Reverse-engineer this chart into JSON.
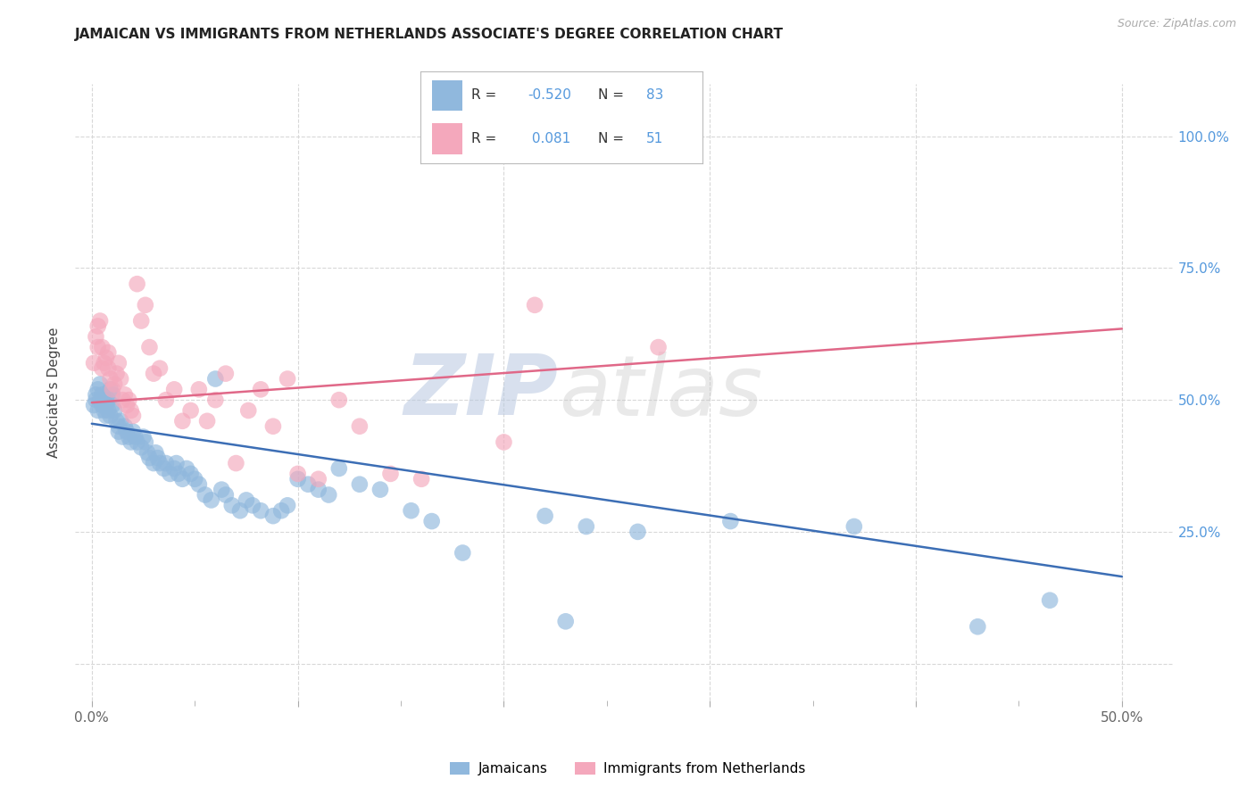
{
  "title": "JAMAICAN VS IMMIGRANTS FROM NETHERLANDS ASSOCIATE'S DEGREE CORRELATION CHART",
  "source": "Source: ZipAtlas.com",
  "ylabel_label": "Associate's Degree",
  "xlim": [
    -0.008,
    0.525
  ],
  "ylim": [
    -0.07,
    1.1
  ],
  "blue_color": "#90b8dd",
  "pink_color": "#f4a8bc",
  "blue_line_color": "#3c6eb5",
  "pink_line_color": "#e06888",
  "watermark_zip": "ZIP",
  "watermark_atlas": "atlas",
  "background_color": "#ffffff",
  "grid_color": "#d8d8d8",
  "blue_trend_x0": 0.0,
  "blue_trend_y0": 0.455,
  "blue_trend_x1": 0.5,
  "blue_trend_y1": 0.165,
  "pink_trend_x0": 0.0,
  "pink_trend_y0": 0.495,
  "pink_trend_x1": 0.5,
  "pink_trend_y1": 0.635,
  "jamaicans_x": [
    0.001,
    0.002,
    0.002,
    0.003,
    0.003,
    0.004,
    0.004,
    0.005,
    0.005,
    0.006,
    0.006,
    0.007,
    0.007,
    0.008,
    0.008,
    0.009,
    0.009,
    0.01,
    0.01,
    0.011,
    0.012,
    0.013,
    0.013,
    0.014,
    0.015,
    0.016,
    0.017,
    0.018,
    0.019,
    0.02,
    0.021,
    0.022,
    0.024,
    0.025,
    0.026,
    0.027,
    0.028,
    0.03,
    0.031,
    0.032,
    0.033,
    0.035,
    0.036,
    0.038,
    0.04,
    0.041,
    0.042,
    0.044,
    0.046,
    0.048,
    0.05,
    0.052,
    0.055,
    0.058,
    0.06,
    0.063,
    0.065,
    0.068,
    0.072,
    0.075,
    0.078,
    0.082,
    0.088,
    0.092,
    0.095,
    0.1,
    0.105,
    0.11,
    0.115,
    0.12,
    0.13,
    0.14,
    0.155,
    0.165,
    0.18,
    0.22,
    0.24,
    0.265,
    0.31,
    0.37,
    0.43,
    0.465,
    0.23
  ],
  "jamaicans_y": [
    0.49,
    0.5,
    0.51,
    0.52,
    0.48,
    0.5,
    0.53,
    0.51,
    0.49,
    0.5,
    0.48,
    0.49,
    0.47,
    0.5,
    0.48,
    0.52,
    0.47,
    0.51,
    0.49,
    0.48,
    0.46,
    0.45,
    0.44,
    0.46,
    0.43,
    0.45,
    0.44,
    0.43,
    0.42,
    0.44,
    0.43,
    0.42,
    0.41,
    0.43,
    0.42,
    0.4,
    0.39,
    0.38,
    0.4,
    0.39,
    0.38,
    0.37,
    0.38,
    0.36,
    0.37,
    0.38,
    0.36,
    0.35,
    0.37,
    0.36,
    0.35,
    0.34,
    0.32,
    0.31,
    0.54,
    0.33,
    0.32,
    0.3,
    0.29,
    0.31,
    0.3,
    0.29,
    0.28,
    0.29,
    0.3,
    0.35,
    0.34,
    0.33,
    0.32,
    0.37,
    0.34,
    0.33,
    0.29,
    0.27,
    0.21,
    0.28,
    0.26,
    0.25,
    0.27,
    0.26,
    0.07,
    0.12,
    0.08
  ],
  "netherlands_x": [
    0.001,
    0.002,
    0.003,
    0.003,
    0.004,
    0.005,
    0.005,
    0.006,
    0.007,
    0.008,
    0.008,
    0.009,
    0.01,
    0.011,
    0.012,
    0.013,
    0.014,
    0.015,
    0.016,
    0.017,
    0.018,
    0.019,
    0.02,
    0.022,
    0.024,
    0.026,
    0.028,
    0.03,
    0.033,
    0.036,
    0.04,
    0.044,
    0.048,
    0.052,
    0.056,
    0.06,
    0.065,
    0.07,
    0.076,
    0.082,
    0.088,
    0.095,
    0.1,
    0.11,
    0.12,
    0.13,
    0.145,
    0.16,
    0.2,
    0.215,
    0.275
  ],
  "netherlands_y": [
    0.57,
    0.62,
    0.64,
    0.6,
    0.65,
    0.6,
    0.56,
    0.57,
    0.58,
    0.59,
    0.56,
    0.54,
    0.52,
    0.53,
    0.55,
    0.57,
    0.54,
    0.5,
    0.51,
    0.49,
    0.5,
    0.48,
    0.47,
    0.72,
    0.65,
    0.68,
    0.6,
    0.55,
    0.56,
    0.5,
    0.52,
    0.46,
    0.48,
    0.52,
    0.46,
    0.5,
    0.55,
    0.38,
    0.48,
    0.52,
    0.45,
    0.54,
    0.36,
    0.35,
    0.5,
    0.45,
    0.36,
    0.35,
    0.42,
    0.68,
    0.6
  ]
}
